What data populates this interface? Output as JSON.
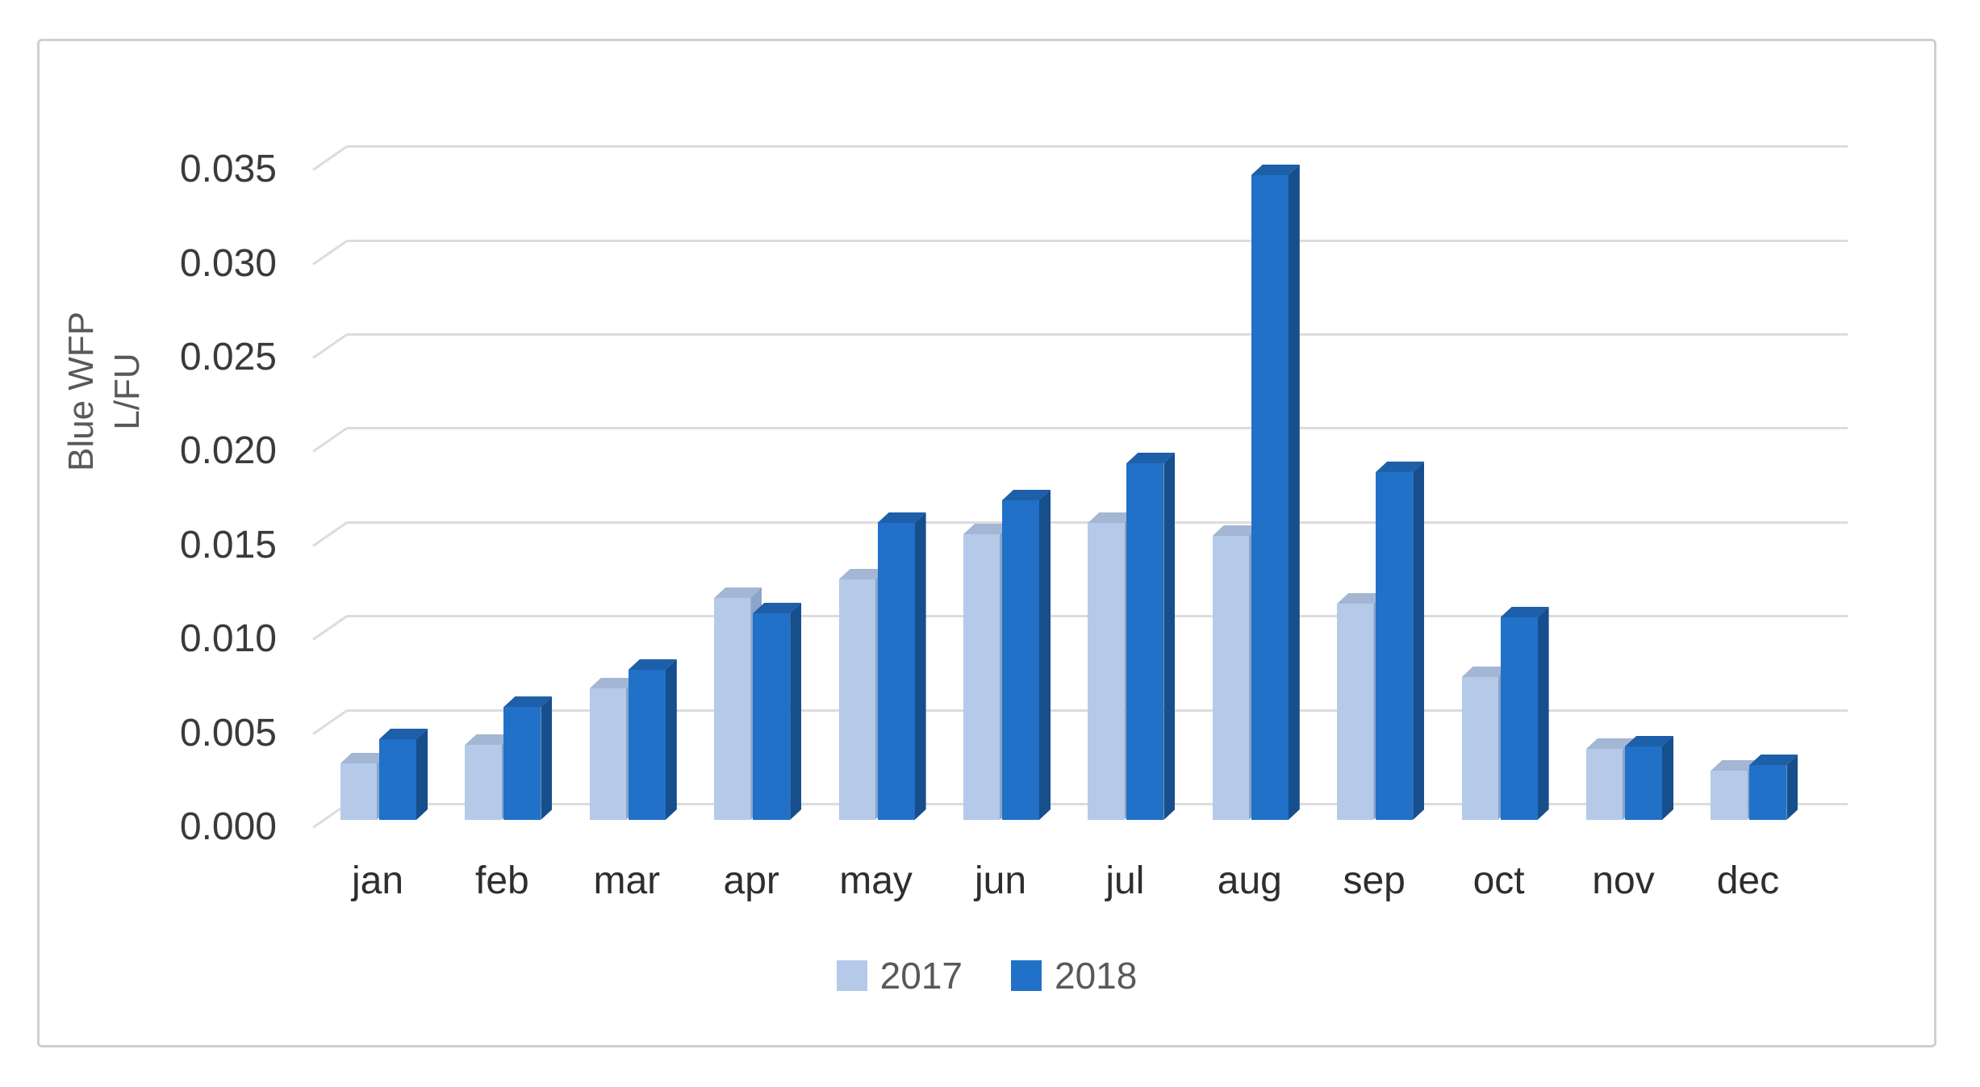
{
  "chart_data": {
    "type": "bar",
    "style": "3d-clustered-column",
    "title": "",
    "xlabel": "",
    "ylabel_lines": [
      "Blue WFP",
      "L/FU"
    ],
    "categories": [
      "jan",
      "feb",
      "mar",
      "apr",
      "may",
      "jun",
      "jul",
      "aug",
      "sep",
      "oct",
      "nov",
      "dec"
    ],
    "series": [
      {
        "name": "2017",
        "values": [
          0.003,
          0.004,
          0.007,
          0.0118,
          0.0128,
          0.0152,
          0.0158,
          0.0151,
          0.0115,
          0.0076,
          0.0038,
          0.0026
        ],
        "color_front": "#b5c9e9",
        "color_top": "#a3b6d4",
        "color_side": "#8ba4c9"
      },
      {
        "name": "2018",
        "values": [
          0.0043,
          0.006,
          0.008,
          0.011,
          0.0158,
          0.017,
          0.019,
          0.0343,
          0.0185,
          0.0108,
          0.0039,
          0.0029
        ],
        "color_front": "#2171c8",
        "color_top": "#1d5fa9",
        "color_side": "#174e8c",
        "color_edge": "#123f73"
      }
    ],
    "ylim": [
      0,
      0.035
    ],
    "ytick_step": 0.005,
    "ytick_labels": [
      "0.000",
      "0.005",
      "0.010",
      "0.015",
      "0.020",
      "0.025",
      "0.030",
      "0.035"
    ],
    "grid": true,
    "legend_position": "bottom-center"
  },
  "colors": {
    "background": "#ffffff",
    "chart_border": "#cfcfcf",
    "gridline": "#dcdcdc",
    "tick_text": "#3a3a3a",
    "month_text": "#2e2e2e",
    "legend_text": "#595959",
    "axis_title_text": "#595959"
  }
}
